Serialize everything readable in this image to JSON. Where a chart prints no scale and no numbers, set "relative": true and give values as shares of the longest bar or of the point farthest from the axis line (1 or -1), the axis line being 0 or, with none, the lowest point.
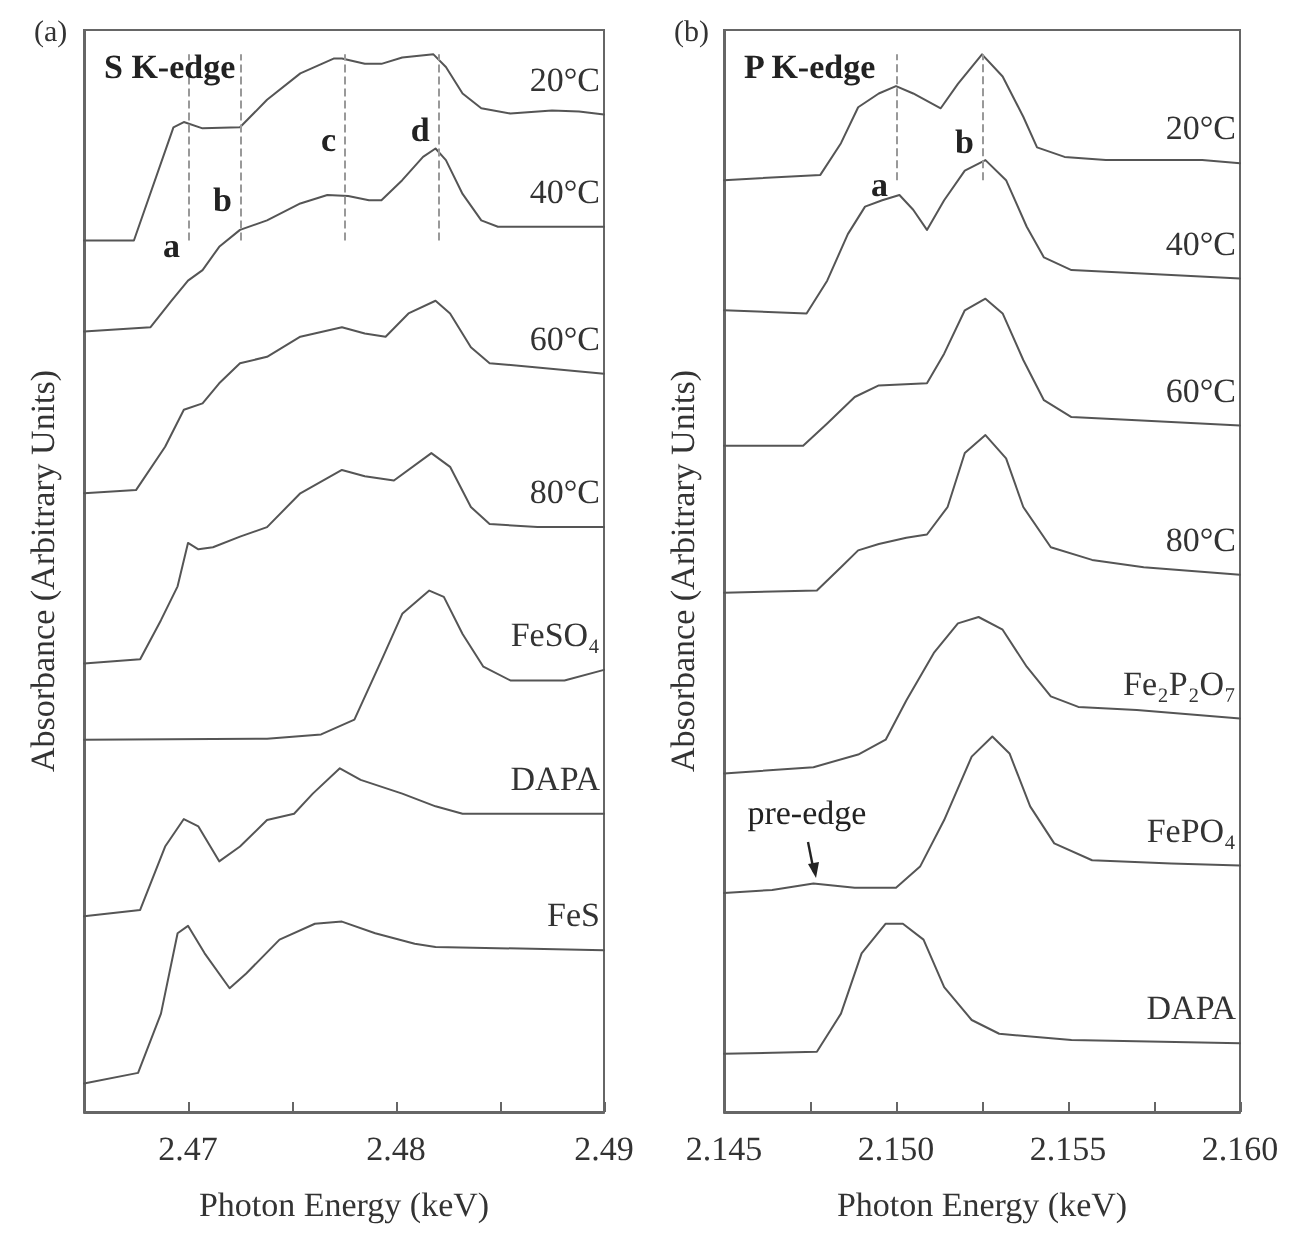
{
  "chart_data": [
    {
      "type": "line",
      "title": "(a)",
      "subtitle": "S K-edge",
      "xlabel": "Photon Energy (keV)",
      "ylabel": "Absorbance (Arbitrary Units)",
      "relative": true,
      "marker": "none",
      "line_style": "solid",
      "xlim": [
        2.465,
        2.49
      ],
      "xticks": [
        2.47,
        {
          "value": 2.475,
          "label": null
        },
        2.48,
        {
          "value": 2.485,
          "label": null
        },
        2.49
      ],
      "series": [
        {
          "name": "20°C",
          "color": "#555555",
          "x": [
            2.465,
            2.4674,
            2.4693,
            2.4698,
            2.4707,
            2.4725,
            2.4738,
            2.4754,
            2.477,
            2.4774,
            2.4785,
            2.4793,
            2.4803,
            2.4818,
            2.4824,
            2.4832,
            2.4841,
            2.4855,
            2.4875,
            2.4888,
            2.49
          ],
          "values": [
            0.824,
            0.824,
            0.931,
            0.936,
            0.93,
            0.931,
            0.957,
            0.982,
            0.996,
            0.996,
            0.991,
            0.991,
            0.997,
            1.0,
            0.988,
            0.963,
            0.949,
            0.944,
            0.947,
            0.946,
            0.943
          ]
        },
        {
          "name": "40°C",
          "color": "#555555",
          "x": [
            2.465,
            2.4682,
            2.4692,
            2.47,
            2.4707,
            2.4715,
            2.4725,
            2.4738,
            2.4754,
            2.4767,
            2.4777,
            2.4787,
            2.4793,
            2.4803,
            2.4813,
            2.4819,
            2.4824,
            2.4832,
            2.4841,
            2.4849,
            2.49
          ],
          "values": [
            0.738,
            0.742,
            0.767,
            0.786,
            0.796,
            0.818,
            0.834,
            0.843,
            0.859,
            0.867,
            0.866,
            0.862,
            0.862,
            0.881,
            0.903,
            0.911,
            0.9,
            0.868,
            0.843,
            0.837,
            0.837
          ]
        },
        {
          "name": "60°C",
          "color": "#555555",
          "x": [
            2.465,
            2.4675,
            2.4689,
            2.4698,
            2.4707,
            2.4715,
            2.4725,
            2.4738,
            2.4754,
            2.4774,
            2.4785,
            2.4795,
            2.4806,
            2.4819,
            2.4826,
            2.4836,
            2.4845,
            2.4868,
            2.49
          ],
          "values": [
            0.585,
            0.588,
            0.629,
            0.664,
            0.67,
            0.689,
            0.708,
            0.714,
            0.733,
            0.742,
            0.736,
            0.733,
            0.755,
            0.767,
            0.755,
            0.723,
            0.708,
            0.704,
            0.698
          ]
        },
        {
          "name": "80°C",
          "color": "#555555",
          "x": [
            2.465,
            2.4677,
            2.4687,
            2.4695,
            2.47,
            2.4705,
            2.4712,
            2.4725,
            2.4738,
            2.4754,
            2.4774,
            2.4785,
            2.4799,
            2.4817,
            2.4826,
            2.4836,
            2.4845,
            2.4868,
            2.49
          ],
          "values": [
            0.424,
            0.428,
            0.465,
            0.497,
            0.538,
            0.532,
            0.534,
            0.544,
            0.553,
            0.585,
            0.607,
            0.601,
            0.597,
            0.623,
            0.61,
            0.572,
            0.556,
            0.553,
            0.553
          ]
        },
        {
          "name": "FeSO₄",
          "color": "#555555",
          "x": [
            2.465,
            2.4738,
            2.4764,
            2.478,
            2.4793,
            2.4803,
            2.4816,
            2.4823,
            2.4832,
            2.4842,
            2.4855,
            2.4881,
            2.49
          ],
          "values": [
            0.352,
            0.353,
            0.357,
            0.371,
            0.427,
            0.471,
            0.493,
            0.487,
            0.452,
            0.421,
            0.408,
            0.408,
            0.418
          ]
        },
        {
          "name": "DAPA",
          "color": "#555555",
          "x": [
            2.465,
            2.4677,
            2.4689,
            2.4698,
            2.4705,
            2.4715,
            2.4725,
            2.4738,
            2.4751,
            2.476,
            2.4773,
            2.4783,
            2.4803,
            2.4819,
            2.4832,
            2.49
          ],
          "values": [
            0.185,
            0.191,
            0.251,
            0.277,
            0.27,
            0.237,
            0.251,
            0.276,
            0.282,
            0.301,
            0.325,
            0.314,
            0.301,
            0.289,
            0.282,
            0.282
          ]
        },
        {
          "name": "FeS",
          "color": "#555555",
          "x": [
            2.465,
            2.4676,
            2.4687,
            2.4695,
            2.47,
            2.4708,
            2.472,
            2.4728,
            2.4744,
            2.4761,
            2.4774,
            2.479,
            2.4809,
            2.4819,
            2.49
          ],
          "values": [
            0.027,
            0.037,
            0.093,
            0.169,
            0.176,
            0.15,
            0.117,
            0.131,
            0.163,
            0.178,
            0.18,
            0.169,
            0.159,
            0.156,
            0.153
          ]
        }
      ],
      "ref_lines": [
        {
          "axis": "x",
          "value": 2.47,
          "color": "#999999",
          "line_style": "dashed"
        },
        {
          "axis": "x",
          "value": 2.4725,
          "color": "#999999",
          "line_style": "dashed"
        },
        {
          "axis": "x",
          "value": 2.4775,
          "color": "#999999",
          "line_style": "dashed"
        },
        {
          "axis": "x",
          "value": 2.482,
          "color": "#999999",
          "line_style": "dashed"
        }
      ],
      "annotations": [
        {
          "text": "a",
          "x": 2.47,
          "y": 0.819
        },
        {
          "text": "b",
          "x": 2.4725,
          "y": 0.862
        },
        {
          "text": "c",
          "x": 2.4775,
          "y": 0.919
        },
        {
          "text": "d",
          "x": 2.482,
          "y": 0.928
        }
      ]
    },
    {
      "type": "line",
      "title": "(b)",
      "subtitle": "P K-edge",
      "xlabel": "Photon Energy (keV)",
      "ylabel": "Absorbance (Arbitrary Units)",
      "relative": true,
      "marker": "none",
      "line_style": "solid",
      "xlim": [
        2.145,
        2.16
      ],
      "xticks": [
        2.145,
        {
          "value": 2.1475,
          "label": null
        },
        {
          "value": 2.15,
          "label": "2.150"
        },
        {
          "value": 2.1525,
          "label": null
        },
        2.155,
        {
          "value": 2.1575,
          "label": null
        },
        {
          "value": 2.16,
          "label": "2.160"
        }
      ],
      "series": [
        {
          "name": "20°C",
          "color": "#555555",
          "x": [
            2.145,
            2.1478,
            2.1484,
            2.1489,
            2.1495,
            2.15,
            2.1505,
            2.1513,
            2.1518,
            2.1525,
            2.1531,
            2.1537,
            2.1541,
            2.1549,
            2.1561,
            2.1589,
            2.16
          ],
          "values": [
            0.881,
            0.886,
            0.916,
            0.95,
            0.963,
            0.97,
            0.963,
            0.949,
            0.972,
            1.0,
            0.979,
            0.941,
            0.912,
            0.903,
            0.9,
            0.9,
            0.897
          ]
        },
        {
          "name": "40°C",
          "color": "#555555",
          "x": [
            2.145,
            2.1474,
            2.148,
            2.1486,
            2.1491,
            2.1496,
            2.1501,
            2.1505,
            2.1509,
            2.1514,
            2.152,
            2.1526,
            2.1532,
            2.1538,
            2.1543,
            2.1551,
            2.157,
            2.16
          ],
          "values": [
            0.758,
            0.755,
            0.786,
            0.83,
            0.856,
            0.862,
            0.867,
            0.853,
            0.834,
            0.862,
            0.89,
            0.9,
            0.881,
            0.837,
            0.808,
            0.796,
            0.793,
            0.788
          ]
        },
        {
          "name": "60°C",
          "color": "#555555",
          "x": [
            2.145,
            2.1473,
            2.148,
            2.1488,
            2.1495,
            2.1509,
            2.1514,
            2.152,
            2.1526,
            2.1531,
            2.1537,
            2.1543,
            2.1551,
            2.157,
            2.16
          ],
          "values": [
            0.63,
            0.63,
            0.651,
            0.676,
            0.687,
            0.689,
            0.717,
            0.758,
            0.769,
            0.755,
            0.711,
            0.673,
            0.657,
            0.654,
            0.649
          ]
        },
        {
          "name": "80°C",
          "color": "#555555",
          "x": [
            2.145,
            2.1477,
            2.1484,
            2.1489,
            2.1495,
            2.1503,
            2.1509,
            2.1515,
            2.152,
            2.1526,
            2.1532,
            2.1537,
            2.1545,
            2.1557,
            2.1572,
            2.16
          ],
          "values": [
            0.491,
            0.493,
            0.515,
            0.531,
            0.537,
            0.543,
            0.546,
            0.572,
            0.623,
            0.64,
            0.618,
            0.572,
            0.534,
            0.522,
            0.515,
            0.508
          ]
        },
        {
          "name": "Fe₂P₂O₇",
          "color": "#555555",
          "x": [
            2.145,
            2.1476,
            2.1489,
            2.1497,
            2.1503,
            2.1511,
            2.1518,
            2.1524,
            2.1531,
            2.1538,
            2.1545,
            2.1553,
            2.157,
            2.16
          ],
          "values": [
            0.32,
            0.326,
            0.338,
            0.352,
            0.389,
            0.434,
            0.462,
            0.468,
            0.456,
            0.421,
            0.393,
            0.383,
            0.38,
            0.372
          ]
        },
        {
          "name": "FePO₄",
          "color": "#555555",
          "x": [
            2.145,
            2.1464,
            2.1476,
            2.1488,
            2.15,
            2.1507,
            2.1514,
            2.1522,
            2.1528,
            2.1533,
            2.1539,
            2.1546,
            2.1557,
            2.158,
            2.16
          ],
          "values": [
            0.207,
            0.21,
            0.216,
            0.212,
            0.212,
            0.232,
            0.276,
            0.336,
            0.355,
            0.339,
            0.289,
            0.254,
            0.238,
            0.235,
            0.233
          ]
        },
        {
          "name": "DAPA",
          "color": "#555555",
          "x": [
            2.145,
            2.1477,
            2.1484,
            2.149,
            2.1497,
            2.1502,
            2.1508,
            2.1514,
            2.1522,
            2.153,
            2.1551,
            2.16
          ],
          "values": [
            0.055,
            0.057,
            0.093,
            0.15,
            0.178,
            0.178,
            0.163,
            0.118,
            0.087,
            0.074,
            0.068,
            0.065
          ]
        }
      ],
      "ref_lines": [
        {
          "axis": "x",
          "value": 2.15,
          "color": "#999999",
          "line_style": "dashed"
        },
        {
          "axis": "x",
          "value": 2.1525,
          "color": "#999999",
          "line_style": "dashed"
        }
      ],
      "annotations": [
        {
          "text": "a",
          "x": 2.15,
          "y": 0.876
        },
        {
          "text": "b",
          "x": 2.1525,
          "y": 0.917
        },
        {
          "text": "pre-edge",
          "x": 2.1477,
          "y": 0.222
        }
      ]
    }
  ]
}
